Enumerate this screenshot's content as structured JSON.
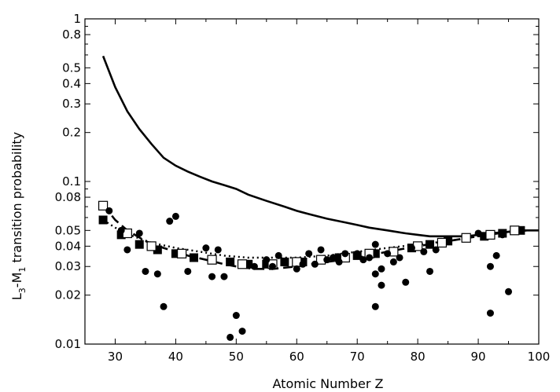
{
  "chart_data": {
    "type": "scatter",
    "xlabel": "Atomic Number Z",
    "ylabel": {
      "base": "L",
      "sub1": "3",
      "mid": "-M",
      "sub2": "1",
      "rest": " transition probability"
    },
    "xlim": [
      25,
      100
    ],
    "ylim": [
      0.01,
      1
    ],
    "yscale": "log",
    "grid": false,
    "xticks": [
      30,
      40,
      50,
      60,
      70,
      80,
      90,
      100
    ],
    "yticks": [
      {
        "value": 1,
        "label": "1"
      },
      {
        "value": 0.8,
        "label": "0.8"
      },
      {
        "value": 0.5,
        "label": "0.5"
      },
      {
        "value": 0.4,
        "label": "0.4"
      },
      {
        "value": 0.3,
        "label": "0.3"
      },
      {
        "value": 0.2,
        "label": "0.2"
      },
      {
        "value": 0.1,
        "label": "0.1"
      },
      {
        "value": 0.08,
        "label": "0.08"
      },
      {
        "value": 0.05,
        "label": "0.05"
      },
      {
        "value": 0.04,
        "label": "0.04"
      },
      {
        "value": 0.03,
        "label": "0.03"
      },
      {
        "value": 0.02,
        "label": "0.02"
      },
      {
        "value": 0.01,
        "label": "0.01"
      }
    ],
    "series": [
      {
        "style": "solid-line",
        "x": [
          28,
          30,
          32,
          34,
          36,
          38,
          40,
          42,
          44,
          46,
          48,
          50,
          52,
          55,
          58,
          60,
          62,
          65,
          68,
          70,
          72,
          75,
          78,
          80,
          82,
          85,
          88,
          90,
          92,
          95,
          97,
          100
        ],
        "y": [
          0.59,
          0.38,
          0.27,
          0.21,
          0.17,
          0.14,
          0.125,
          0.115,
          0.107,
          0.1,
          0.095,
          0.09,
          0.083,
          0.076,
          0.07,
          0.066,
          0.063,
          0.059,
          0.056,
          0.054,
          0.052,
          0.05,
          0.048,
          0.047,
          0.046,
          0.046,
          0.046,
          0.047,
          0.048,
          0.049,
          0.05,
          0.05
        ]
      },
      {
        "style": "dashed-line",
        "x": [
          28,
          30,
          32,
          35,
          38,
          40,
          42,
          45,
          48,
          50,
          53,
          56,
          60,
          65,
          70,
          75,
          80,
          85,
          90,
          95,
          98
        ],
        "y": [
          0.072,
          0.058,
          0.05,
          0.043,
          0.039,
          0.037,
          0.035,
          0.033,
          0.031,
          0.03,
          0.029,
          0.029,
          0.03,
          0.032,
          0.034,
          0.037,
          0.04,
          0.043,
          0.046,
          0.049,
          0.05
        ]
      },
      {
        "style": "dotted-line",
        "x": [
          28,
          30,
          33,
          36,
          40,
          44,
          48,
          52,
          56,
          60,
          65,
          70,
          75,
          80,
          85,
          90,
          95,
          98
        ],
        "y": [
          0.058,
          0.052,
          0.046,
          0.042,
          0.039,
          0.037,
          0.035,
          0.034,
          0.034,
          0.034,
          0.035,
          0.037,
          0.039,
          0.041,
          0.043,
          0.046,
          0.049,
          0.05
        ]
      },
      {
        "style": "filled-square",
        "x": [
          28,
          31,
          34,
          37,
          40,
          43,
          46,
          49,
          52,
          55,
          58,
          61,
          64,
          67,
          70,
          73,
          76,
          79,
          82,
          85,
          88,
          91,
          94,
          97
        ],
        "y": [
          0.058,
          0.047,
          0.041,
          0.038,
          0.036,
          0.034,
          0.033,
          0.032,
          0.031,
          0.031,
          0.032,
          0.032,
          0.033,
          0.034,
          0.035,
          0.036,
          0.037,
          0.039,
          0.041,
          0.043,
          0.045,
          0.046,
          0.048,
          0.05
        ]
      },
      {
        "style": "open-square",
        "x": [
          28,
          32,
          36,
          41,
          46,
          51,
          56,
          60,
          64,
          68,
          72,
          76,
          80,
          84,
          88,
          92,
          96
        ],
        "y": [
          0.071,
          0.048,
          0.04,
          0.036,
          0.033,
          0.031,
          0.031,
          0.032,
          0.033,
          0.034,
          0.036,
          0.037,
          0.04,
          0.042,
          0.045,
          0.047,
          0.05
        ]
      },
      {
        "style": "filled-circle",
        "x": [
          29,
          31,
          32,
          34,
          35,
          37,
          38,
          39,
          40,
          42,
          45,
          46,
          47,
          48,
          49,
          50,
          51,
          53,
          55,
          56,
          57,
          58,
          60,
          61,
          62,
          63,
          64,
          65,
          66,
          67,
          68,
          70,
          71,
          72,
          73,
          73,
          73,
          74,
          74,
          75,
          76,
          77,
          78,
          79,
          81,
          82,
          83,
          90,
          92,
          92,
          93,
          94,
          95
        ],
        "y": [
          0.066,
          0.05,
          0.038,
          0.048,
          0.028,
          0.027,
          0.017,
          0.057,
          0.061,
          0.028,
          0.039,
          0.026,
          0.038,
          0.026,
          0.011,
          0.015,
          0.012,
          0.03,
          0.033,
          0.03,
          0.035,
          0.032,
          0.029,
          0.031,
          0.036,
          0.031,
          0.038,
          0.033,
          0.034,
          0.032,
          0.036,
          0.036,
          0.033,
          0.034,
          0.041,
          0.027,
          0.017,
          0.029,
          0.023,
          0.036,
          0.032,
          0.034,
          0.024,
          0.039,
          0.037,
          0.028,
          0.038,
          0.048,
          0.03,
          0.0155,
          0.035,
          0.047,
          0.021
        ]
      }
    ]
  }
}
